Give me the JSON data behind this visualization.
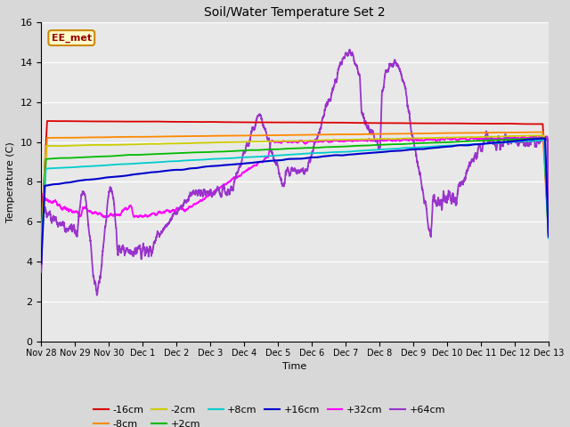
{
  "title": "Soil/Water Temperature Set 2",
  "xlabel": "Time",
  "ylabel": "Temperature (C)",
  "ylim": [
    0,
    16
  ],
  "yticks": [
    0,
    2,
    4,
    6,
    8,
    10,
    12,
    14,
    16
  ],
  "annotation_text": "EE_met",
  "annotation_bg": "#ffffcc",
  "annotation_border": "#cc8800",
  "plot_bg": "#e8e8e8",
  "fig_bg": "#d8d8d8",
  "series_colors": {
    "-16cm": "#dd0000",
    "-8cm": "#ff8800",
    "-2cm": "#cccc00",
    "+2cm": "#00bb00",
    "+8cm": "#00cccc",
    "+16cm": "#0000cc",
    "+32cm": "#ff00ff",
    "+64cm": "#9933cc"
  },
  "n_days": 15,
  "xtick_labels": [
    "Nov 28",
    "Nov 29",
    "Nov 30",
    "Dec 1",
    "Dec 2",
    "Dec 3",
    "Dec 4",
    "Dec 5",
    "Dec 6",
    "Dec 7",
    "Dec 8",
    "Dec 9",
    "Dec 10",
    "Dec 11",
    "Dec 12",
    "Dec 13"
  ],
  "legend_row1": [
    "-16cm",
    "-8cm",
    "-2cm",
    "+2cm",
    "+8cm",
    "+16cm"
  ],
  "legend_row2": [
    "+32cm",
    "+64cm"
  ]
}
